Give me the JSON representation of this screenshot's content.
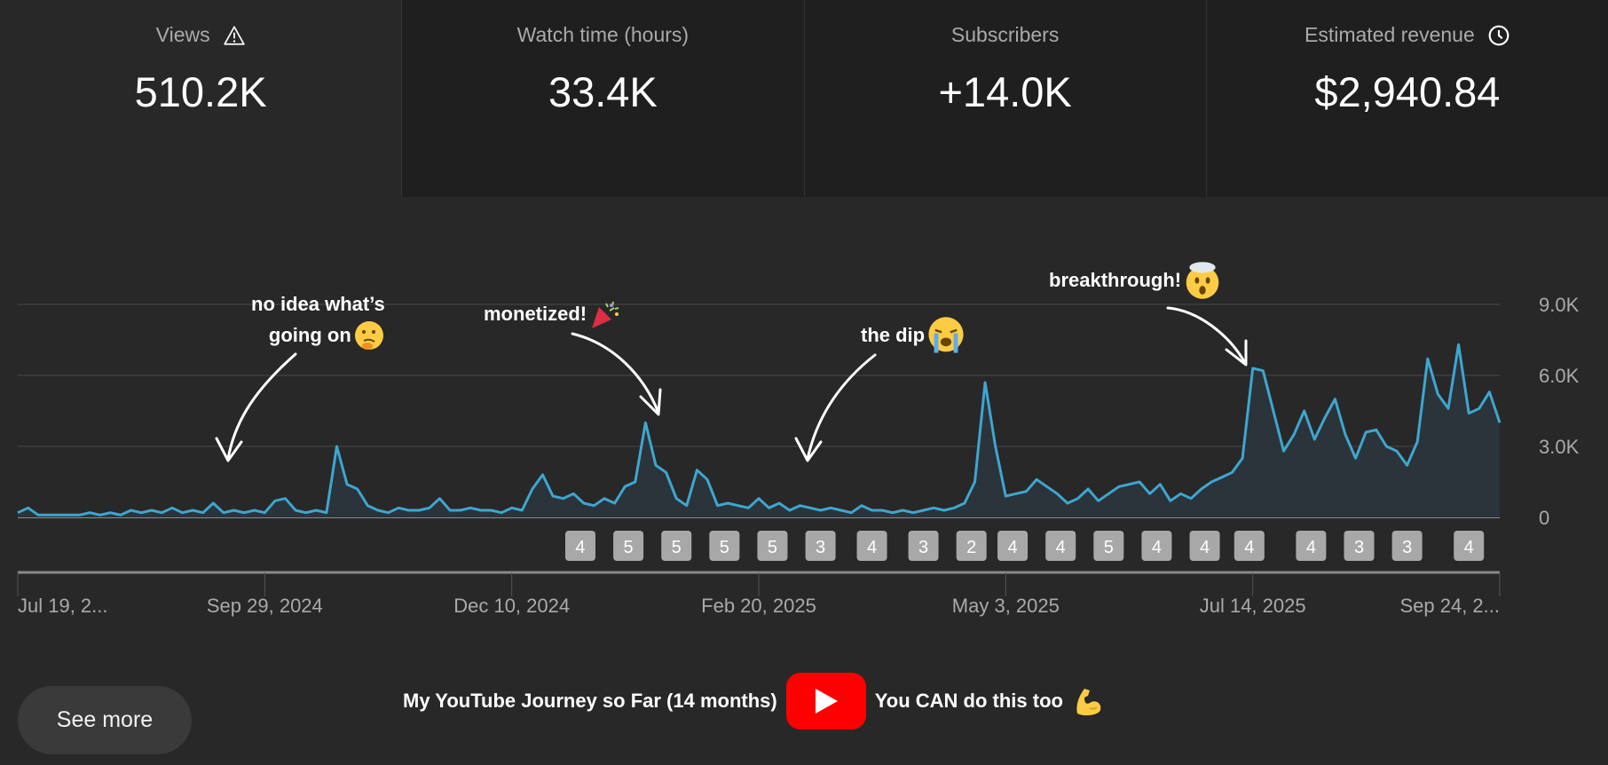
{
  "cards": [
    {
      "label": "Views",
      "value": "510.2K",
      "icon": "warning-icon",
      "selected": true
    },
    {
      "label": "Watch time (hours)",
      "value": "33.4K"
    },
    {
      "label": "Subscribers",
      "value": "+14.0K"
    },
    {
      "label": "Estimated revenue",
      "value": "$2,940.84",
      "icon": "clock-icon"
    }
  ],
  "colors": {
    "line": "#3ea6d0",
    "area": "#2b343b",
    "grid": "#3d3d3d",
    "badge": "#a8a8a8",
    "youtube_red": "#ff0000"
  },
  "annotations": [
    {
      "line1": "no idea what’s",
      "line2": "going on",
      "emoji": "thinking-face-icon"
    },
    {
      "line1": "monetized!",
      "emoji": "party-popper-icon"
    },
    {
      "line1": "the dip",
      "emoji": "crying-face-icon"
    },
    {
      "line1": "breakthrough!",
      "emoji": "exploding-head-icon"
    }
  ],
  "see_more": "See more",
  "caption": {
    "left": "My YouTube Journey so Far (14 months)",
    "right": "You CAN do this too",
    "logo": "youtube-play-icon",
    "emoji": "flexed-biceps-icon"
  },
  "chart_data": {
    "type": "area",
    "title": "",
    "xlabel": "",
    "ylabel": "",
    "ylim": [
      0,
      9000
    ],
    "yticks": [
      0,
      3000,
      6000,
      9000
    ],
    "ytick_labels": [
      "0",
      "3.0K",
      "6.0K",
      "9.0K"
    ],
    "xtick_labels": [
      "Jul 19, 2...",
      "Sep 29, 2024",
      "Dec 10, 2024",
      "Feb 20, 2025",
      "May 3, 2025",
      "Jul 14, 2025",
      "Sep 24, 2..."
    ],
    "xticks": [
      "2024-07-19",
      "2024-09-29",
      "2024-12-10",
      "2025-02-20",
      "2025-05-03",
      "2025-07-14",
      "2025-09-24"
    ],
    "grid": true,
    "x": [
      "2024-07-19",
      "2024-07-22",
      "2024-07-25",
      "2024-07-28",
      "2024-07-31",
      "2024-08-03",
      "2024-08-06",
      "2024-08-09",
      "2024-08-12",
      "2024-08-15",
      "2024-08-18",
      "2024-08-21",
      "2024-08-24",
      "2024-08-27",
      "2024-08-30",
      "2024-09-02",
      "2024-09-05",
      "2024-09-08",
      "2024-09-11",
      "2024-09-14",
      "2024-09-17",
      "2024-09-20",
      "2024-09-23",
      "2024-09-26",
      "2024-09-29",
      "2024-10-02",
      "2024-10-05",
      "2024-10-08",
      "2024-10-11",
      "2024-10-14",
      "2024-10-17",
      "2024-10-20",
      "2024-10-23",
      "2024-10-26",
      "2024-10-29",
      "2024-11-01",
      "2024-11-04",
      "2024-11-07",
      "2024-11-10",
      "2024-11-13",
      "2024-11-16",
      "2024-11-19",
      "2024-11-22",
      "2024-11-25",
      "2024-11-28",
      "2024-12-01",
      "2024-12-04",
      "2024-12-07",
      "2024-12-10",
      "2024-12-13",
      "2024-12-16",
      "2024-12-19",
      "2024-12-22",
      "2024-12-25",
      "2024-12-28",
      "2024-12-31",
      "2025-01-03",
      "2025-01-06",
      "2025-01-09",
      "2025-01-12",
      "2025-01-15",
      "2025-01-18",
      "2025-01-21",
      "2025-01-24",
      "2025-01-27",
      "2025-01-30",
      "2025-02-02",
      "2025-02-05",
      "2025-02-08",
      "2025-02-11",
      "2025-02-14",
      "2025-02-17",
      "2025-02-20",
      "2025-02-23",
      "2025-02-26",
      "2025-03-01",
      "2025-03-04",
      "2025-03-07",
      "2025-03-10",
      "2025-03-13",
      "2025-03-16",
      "2025-03-19",
      "2025-03-22",
      "2025-03-25",
      "2025-03-28",
      "2025-03-31",
      "2025-04-03",
      "2025-04-06",
      "2025-04-09",
      "2025-04-12",
      "2025-04-15",
      "2025-04-18",
      "2025-04-21",
      "2025-04-24",
      "2025-04-27",
      "2025-04-30",
      "2025-05-03",
      "2025-05-06",
      "2025-05-09",
      "2025-05-12",
      "2025-05-15",
      "2025-05-18",
      "2025-05-21",
      "2025-05-24",
      "2025-05-27",
      "2025-05-30",
      "2025-06-02",
      "2025-06-05",
      "2025-06-08",
      "2025-06-11",
      "2025-06-14",
      "2025-06-17",
      "2025-06-20",
      "2025-06-23",
      "2025-06-26",
      "2025-06-29",
      "2025-07-02",
      "2025-07-05",
      "2025-07-08",
      "2025-07-11",
      "2025-07-14",
      "2025-07-17",
      "2025-07-20",
      "2025-07-23",
      "2025-07-26",
      "2025-07-29",
      "2025-08-01",
      "2025-08-04",
      "2025-08-07",
      "2025-08-10",
      "2025-08-13",
      "2025-08-16",
      "2025-08-19",
      "2025-08-22",
      "2025-08-25",
      "2025-08-28",
      "2025-08-31",
      "2025-09-03",
      "2025-09-06",
      "2025-09-09",
      "2025-09-12",
      "2025-09-15",
      "2025-09-18",
      "2025-09-21",
      "2025-09-24"
    ],
    "y": [
      200,
      400,
      100,
      100,
      100,
      100,
      100,
      200,
      100,
      200,
      100,
      300,
      200,
      300,
      200,
      400,
      200,
      300,
      200,
      600,
      200,
      300,
      200,
      300,
      200,
      700,
      800,
      300,
      200,
      300,
      200,
      3000,
      1400,
      1200,
      500,
      300,
      200,
      400,
      300,
      300,
      400,
      800,
      300,
      300,
      400,
      300,
      300,
      200,
      400,
      300,
      1200,
      1800,
      900,
      800,
      1000,
      600,
      500,
      800,
      600,
      1300,
      1500,
      4000,
      2200,
      1900,
      800,
      500,
      2000,
      1600,
      500,
      600,
      500,
      400,
      800,
      400,
      600,
      300,
      500,
      400,
      300,
      400,
      300,
      200,
      500,
      300,
      300,
      200,
      300,
      200,
      300,
      400,
      300,
      400,
      600,
      1500,
      5700,
      3000,
      900,
      1000,
      1100,
      1600,
      1300,
      1000,
      600,
      800,
      1200,
      700,
      1000,
      1300,
      1400,
      1500,
      1000,
      1400,
      700,
      1000,
      800,
      1200,
      1500,
      1700,
      1900,
      2500,
      6300,
      6200,
      4500,
      2800,
      3500,
      4500,
      3300,
      4200,
      5000,
      3500,
      2500,
      3600,
      3700,
      3000,
      2800,
      2200,
      3200,
      6700,
      5200,
      4600,
      7300,
      4400,
      4600,
      5300,
      4000
    ],
    "badges": [
      {
        "date": "2024-12-30",
        "value": "4"
      },
      {
        "date": "2025-01-13",
        "value": "5"
      },
      {
        "date": "2025-01-27",
        "value": "5"
      },
      {
        "date": "2025-02-10",
        "value": "5"
      },
      {
        "date": "2025-02-24",
        "value": "5"
      },
      {
        "date": "2025-03-10",
        "value": "3"
      },
      {
        "date": "2025-03-25",
        "value": "4"
      },
      {
        "date": "2025-04-09",
        "value": "3"
      },
      {
        "date": "2025-04-23",
        "value": "2"
      },
      {
        "date": "2025-05-05",
        "value": "4"
      },
      {
        "date": "2025-05-19",
        "value": "4"
      },
      {
        "date": "2025-06-02",
        "value": "5"
      },
      {
        "date": "2025-06-16",
        "value": "4"
      },
      {
        "date": "2025-06-30",
        "value": "4"
      },
      {
        "date": "2025-07-13",
        "value": "4"
      },
      {
        "date": "2025-07-31",
        "value": "4"
      },
      {
        "date": "2025-08-14",
        "value": "3"
      },
      {
        "date": "2025-08-28",
        "value": "3"
      },
      {
        "date": "2025-09-15",
        "value": "4"
      }
    ]
  }
}
